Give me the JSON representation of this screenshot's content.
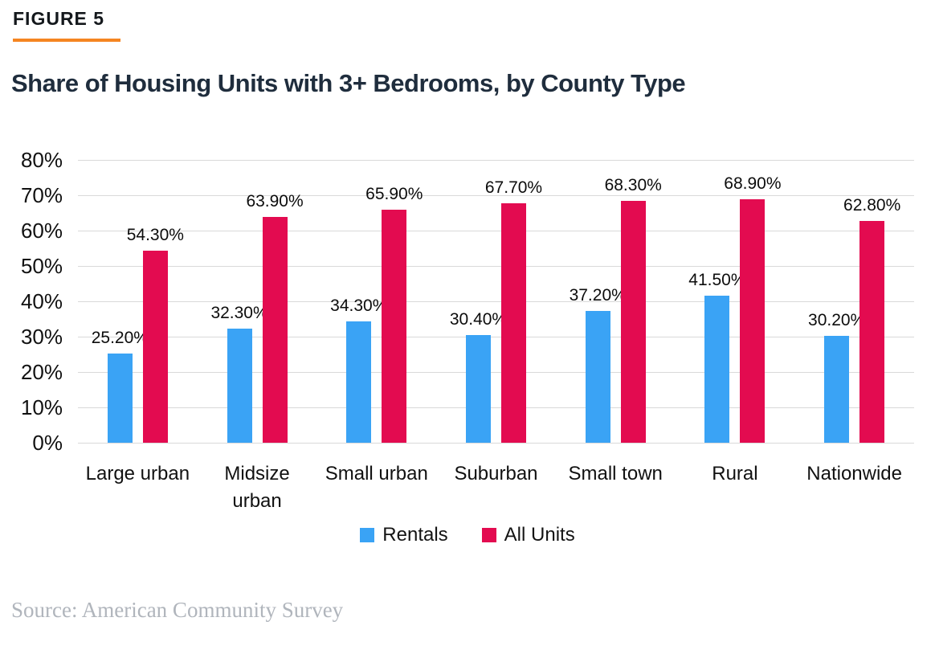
{
  "figure": {
    "label": "FIGURE 5"
  },
  "title": "Share of Housing Units with 3+ Bedrooms, by County Type",
  "source": "Source: American Community Survey",
  "colors": {
    "rentals_blue": "#3AA3F5",
    "all_units_red": "#E30B50",
    "accent_orange": "#F58521",
    "title_text": "#1F2D3D",
    "gridline": "#D9D9D9",
    "source_text": "#B0B5BC"
  },
  "chart_data": {
    "type": "bar",
    "title": "Share of Housing Units with 3+ Bedrooms, by County Type",
    "categories": [
      "Large urban",
      "Midsize urban",
      "Small urban",
      "Suburban",
      "Small town",
      "Rural",
      "Nationwide"
    ],
    "category_label_lines": [
      [
        "Large urban"
      ],
      [
        "Midsize",
        "urban"
      ],
      [
        "Small urban"
      ],
      [
        "Suburban"
      ],
      [
        "Small town"
      ],
      [
        "Rural"
      ],
      [
        "Nationwide"
      ]
    ],
    "series": [
      {
        "name": "Rentals",
        "color": "#3AA3F5",
        "values": [
          25.2,
          32.3,
          34.3,
          30.4,
          37.2,
          41.5,
          30.2
        ]
      },
      {
        "name": "All Units",
        "color": "#E30B50",
        "values": [
          54.3,
          63.9,
          65.9,
          67.7,
          68.3,
          68.9,
          62.8
        ]
      }
    ],
    "data_labels": [
      [
        "25.20%",
        "32.30%",
        "34.30%",
        "30.40%",
        "37.20%",
        "41.50%",
        "30.20%"
      ],
      [
        "54.30%",
        "63.90%",
        "65.90%",
        "67.70%",
        "68.30%",
        "68.90%",
        "62.80%"
      ]
    ],
    "xlabel": "",
    "ylabel": "",
    "ytick_labels": [
      "0%",
      "10%",
      "20%",
      "30%",
      "40%",
      "50%",
      "60%",
      "70%",
      "80%"
    ],
    "ylim": [
      0,
      80
    ],
    "ytick_step": 10,
    "grid": true,
    "legend_position": "bottom"
  }
}
